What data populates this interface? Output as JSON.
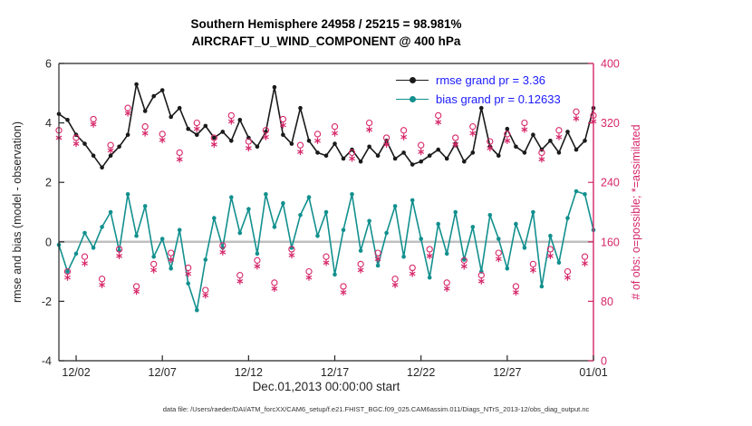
{
  "page": {
    "caption": "data file: /Users/raeder/DAI/ATM_forcXX/CAM6_setup/f.e21.FHIST_BGC.f09_025.CAM6assim.011/Diags_NTrS_2013-12/obs_diag_output.nc"
  },
  "colors": {
    "rmse": "#1a1a1a",
    "bias": "#12908e",
    "obs": "#d62769",
    "legend_text": "#1a1aff",
    "axis": "#262626",
    "zero_line": "#c0c0c0",
    "background": "#ffffff"
  },
  "chart_data": {
    "type": "line",
    "title": "Southern Hemisphere 24958 / 25215 = 98.981%",
    "subtitle": "AIRCRAFT_U_WIND_COMPONENT @ 400 hPa",
    "xlabel": "Dec.01,2013 00:00:00 start",
    "ylabel_left": "rmse and bias (model - observation)",
    "ylabel_right": "# of obs: o=possible; *=assimilated",
    "xlim": [
      1,
      32
    ],
    "ylim_left": [
      -4,
      6
    ],
    "ylim_right": [
      0,
      400
    ],
    "xticks": {
      "days": [
        2,
        7,
        12,
        17,
        22,
        27,
        32
      ],
      "labels": [
        "12/02",
        "12/07",
        "12/12",
        "12/17",
        "12/22",
        "12/27",
        "01/01"
      ]
    },
    "yticks_left": [
      -4,
      -2,
      0,
      2,
      4,
      6
    ],
    "yticks_right": [
      0,
      80,
      160,
      240,
      320,
      400
    ],
    "zero_line": 0,
    "x_days": [
      1,
      1.5,
      2,
      2.5,
      3,
      3.5,
      4,
      4.5,
      5,
      5.5,
      6,
      6.5,
      7,
      7.5,
      8,
      8.5,
      9,
      9.5,
      10,
      10.5,
      11,
      11.5,
      12,
      12.5,
      13,
      13.5,
      14,
      14.5,
      15,
      15.5,
      16,
      16.5,
      17,
      17.5,
      18,
      18.5,
      19,
      19.5,
      20,
      20.5,
      21,
      21.5,
      22,
      22.5,
      23,
      23.5,
      24,
      24.5,
      25,
      25.5,
      26,
      26.5,
      27,
      27.5,
      28,
      28.5,
      29,
      29.5,
      30,
      30.5,
      31,
      31.5,
      32
    ],
    "series": [
      {
        "name": "rmse",
        "legend": "rmse grand pr = 3.36",
        "axis": "left",
        "style": "line-dot",
        "color_key": "rmse",
        "values": [
          4.3,
          4.1,
          3.6,
          3.3,
          2.9,
          2.5,
          2.9,
          3.2,
          3.6,
          5.3,
          4.4,
          4.9,
          5.1,
          4.2,
          4.5,
          3.8,
          3.6,
          3.9,
          3.5,
          3.7,
          3.4,
          4.1,
          3.5,
          3.2,
          3.7,
          5.2,
          3.6,
          3.3,
          4.5,
          3.4,
          3.0,
          2.9,
          3.3,
          2.8,
          3.1,
          2.7,
          3.2,
          2.9,
          3.4,
          2.8,
          3.0,
          2.6,
          2.7,
          2.9,
          3.1,
          2.8,
          3.3,
          2.7,
          3.0,
          4.5,
          3.2,
          2.9,
          3.8,
          3.2,
          3.0,
          3.6,
          3.1,
          3.4,
          3.0,
          3.7,
          3.1,
          3.4,
          4.5
        ]
      },
      {
        "name": "bias",
        "legend": "bias grand pr = 0.12633",
        "axis": "left",
        "style": "line-dot",
        "color_key": "bias",
        "values": [
          -0.1,
          -1.0,
          -0.4,
          0.3,
          -0.2,
          0.5,
          1.0,
          -0.3,
          1.6,
          0.2,
          1.2,
          -0.5,
          0.1,
          -0.9,
          0.4,
          -1.4,
          -2.3,
          -0.6,
          0.8,
          -0.2,
          1.5,
          0.3,
          1.1,
          -0.4,
          1.6,
          0.5,
          1.3,
          -0.2,
          0.9,
          1.5,
          0.2,
          1.0,
          -1.1,
          0.4,
          1.6,
          -0.3,
          0.7,
          -0.8,
          0.3,
          1.2,
          -0.5,
          1.4,
          0.1,
          -1.2,
          0.6,
          -0.4,
          1.0,
          -0.6,
          0.5,
          -1.0,
          0.9,
          0.1,
          -0.9,
          0.6,
          -0.2,
          1.0,
          -1.5,
          0.2,
          -0.7,
          0.8,
          1.7,
          1.6,
          0.4
        ]
      },
      {
        "name": "obs-possible",
        "legend": "o=possible",
        "axis": "right",
        "style": "marker",
        "marker": "circle",
        "color_key": "obs",
        "values": [
          310,
          120,
          300,
          140,
          325,
          110,
          290,
          150,
          340,
          100,
          315,
          130,
          305,
          145,
          280,
          125,
          320,
          95,
          300,
          155,
          330,
          115,
          295,
          135,
          310,
          105,
          325,
          150,
          290,
          120,
          305,
          140,
          315,
          100,
          280,
          130,
          320,
          145,
          300,
          110,
          310,
          125,
          290,
          150,
          330,
          105,
          300,
          135,
          315,
          115,
          295,
          145,
          305,
          100,
          320,
          130,
          280,
          150,
          310,
          120,
          335,
          140,
          330
        ]
      },
      {
        "name": "obs-assimilated",
        "legend": "*=assimilated",
        "axis": "right",
        "style": "marker",
        "marker": "asterisk",
        "color_key": "obs",
        "values": [
          300,
          112,
          292,
          131,
          318,
          102,
          283,
          141,
          333,
          93,
          306,
          122,
          297,
          136,
          271,
          117,
          312,
          88,
          291,
          146,
          322,
          107,
          286,
          127,
          301,
          97,
          317,
          142,
          281,
          112,
          296,
          132,
          306,
          92,
          272,
          122,
          311,
          137,
          291,
          102,
          301,
          117,
          281,
          141,
          321,
          97,
          291,
          127,
          306,
          107,
          286,
          137,
          296,
          92,
          311,
          122,
          271,
          141,
          301,
          112,
          326,
          131,
          322
        ]
      }
    ]
  }
}
